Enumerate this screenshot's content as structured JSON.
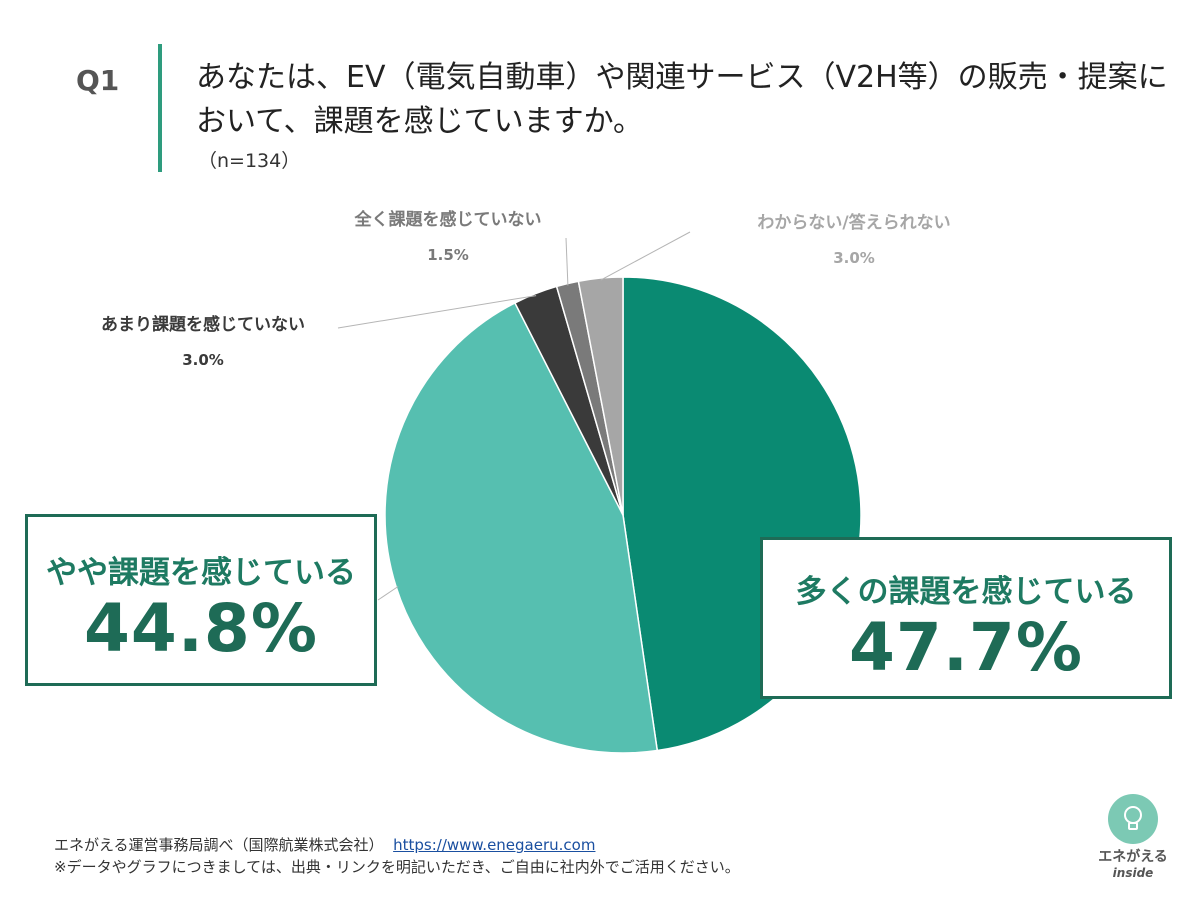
{
  "question": {
    "label": "Q1",
    "text": "あなたは、EV（電気自動車）や関連サービス（V2H等）の販売・提案において、課題を感じていますか。",
    "n": "（n=134）"
  },
  "chart_data": {
    "type": "pie",
    "start_angle_deg": 0,
    "direction": "clockwise",
    "slices": [
      {
        "label": "多くの課題を感じている",
        "value": 47.7,
        "value_label": "47.7%",
        "color": "#0a8a72"
      },
      {
        "label": "やや課題を感じている",
        "value": 44.8,
        "value_label": "44.8%",
        "color": "#56bfb0"
      },
      {
        "label": "あまり課題を感じていない",
        "value": 3.0,
        "value_label": "3.0%",
        "color": "#3a3a3a"
      },
      {
        "label": "全く課題を感じていない",
        "value": 1.5,
        "value_label": "1.5%",
        "color": "#7a7a7a"
      },
      {
        "label": "わからない/答えられない",
        "value": 3.0,
        "value_label": "3.0%",
        "color": "#a6a6a6"
      }
    ]
  },
  "footer": {
    "source": "エネがえる運営事務局調べ（国際航業株式会社）",
    "url": "https://www.enegaeru.com",
    "note": "※データやグラフにつきましては、出典・リンクを明記いただき、ご自由に社内外でご活用ください。"
  },
  "logo": {
    "text": "エネがえる",
    "sub": "inside"
  }
}
